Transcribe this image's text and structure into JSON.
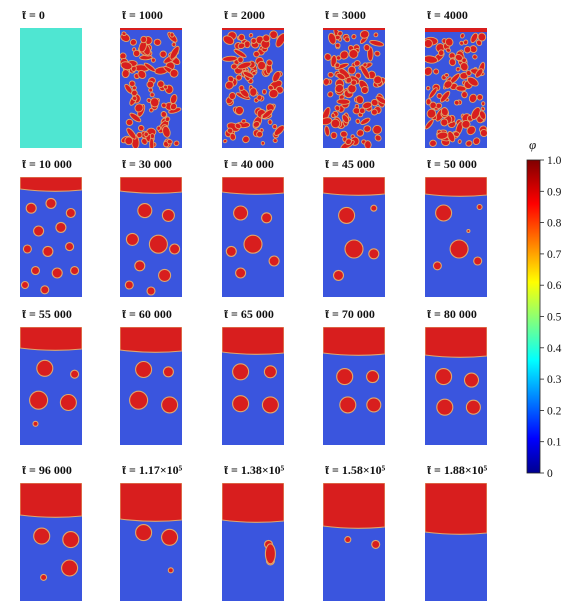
{
  "colors": {
    "matrix": "#3a55de",
    "droplet": "#d81e1e",
    "interface": "#e0a66b",
    "initial": "#4fe6d2"
  },
  "panels": [
    {
      "label": "̃t = 0"
    },
    {
      "label": "̃t = 1000"
    },
    {
      "label": "̃t = 2000"
    },
    {
      "label": "̃t = 3000"
    },
    {
      "label": "̃t = 4000"
    },
    {
      "label": "̃t = 10 000"
    },
    {
      "label": "̃t = 30 000"
    },
    {
      "label": "̃t = 40 000"
    },
    {
      "label": "̃t = 45 000"
    },
    {
      "label": "̃t = 50 000"
    },
    {
      "label": "̃t = 55 000"
    },
    {
      "label": "̃t = 60 000"
    },
    {
      "label": "̃t = 65 000"
    },
    {
      "label": "̃t = 70 000"
    },
    {
      "label": "̃t = 80 000"
    },
    {
      "label": "̃t = 96 000"
    },
    {
      "label": "̃t = 1.17×10⁵"
    },
    {
      "label": "̃t = 1.38×10⁵"
    },
    {
      "label": "̃t = 1.58×10⁵"
    },
    {
      "label": "̃t = 1.88×10⁵"
    }
  ],
  "colorbar": {
    "symbol": "φ",
    "ticks": [
      "1.0",
      "0.9",
      "0.8",
      "0.7",
      "0.6",
      "0.5",
      "0.4",
      "0.3",
      "0.2",
      "0.1",
      "0"
    ]
  }
}
